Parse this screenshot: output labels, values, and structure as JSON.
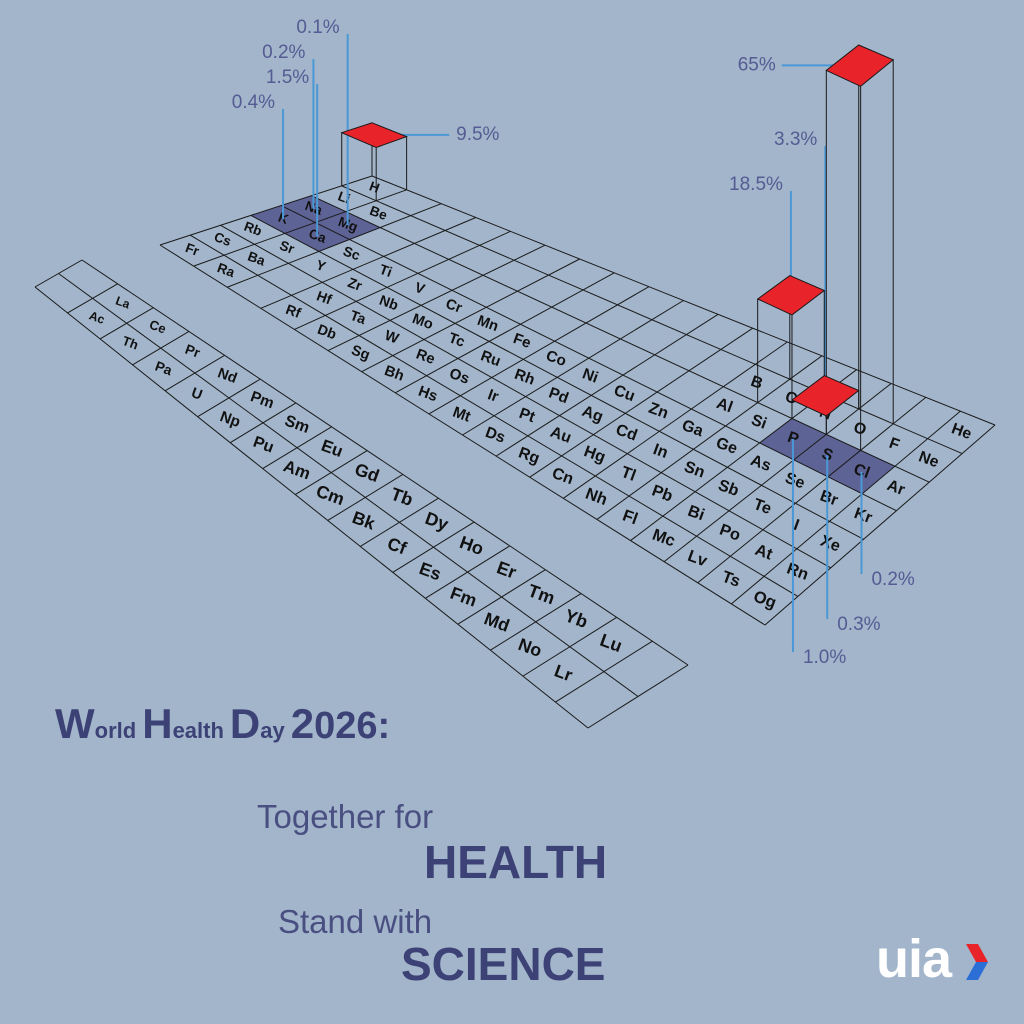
{
  "title": {
    "words": [
      "World",
      "Health",
      "Day",
      "2026:"
    ]
  },
  "slogans": [
    {
      "line1": "Together for",
      "line2": "HEALTH"
    },
    {
      "line1": "Stand with",
      "line2": "SCIENCE"
    }
  ],
  "logo": "uia",
  "periodic_table": {
    "main_rows": [
      [
        "H",
        null,
        null,
        null,
        null,
        null,
        null,
        null,
        null,
        null,
        null,
        null,
        null,
        null,
        null,
        null,
        null,
        "He"
      ],
      [
        "Li",
        "Be",
        null,
        null,
        null,
        null,
        null,
        null,
        null,
        null,
        null,
        null,
        "B",
        "C",
        "N",
        "O",
        "F",
        "Ne"
      ],
      [
        "Na",
        "Mg",
        null,
        null,
        null,
        null,
        null,
        null,
        null,
        null,
        null,
        null,
        "Al",
        "Si",
        "P",
        "S",
        "Cl",
        "Ar"
      ],
      [
        "K",
        "Ca",
        "Sc",
        "Ti",
        "V",
        "Cr",
        "Mn",
        "Fe",
        "Co",
        "Ni",
        "Cu",
        "Zn",
        "Ga",
        "Ge",
        "As",
        "Se",
        "Br",
        "Kr"
      ],
      [
        "Rb",
        "Sr",
        "Y",
        "Zr",
        "Nb",
        "Mo",
        "Tc",
        "Ru",
        "Rh",
        "Pd",
        "Ag",
        "Cd",
        "In",
        "Sn",
        "Sb",
        "Te",
        "I",
        "Xe"
      ],
      [
        "Cs",
        "Ba",
        null,
        "Hf",
        "Ta",
        "W",
        "Re",
        "Os",
        "Ir",
        "Pt",
        "Au",
        "Hg",
        "Tl",
        "Pb",
        "Bi",
        "Po",
        "At",
        "Rn"
      ],
      [
        "Fr",
        "Ra",
        null,
        "Rf",
        "Db",
        "Sg",
        "Bh",
        "Hs",
        "Mt",
        "Ds",
        "Rg",
        "Cn",
        "Nh",
        "Fl",
        "Mc",
        "Lv",
        "Ts",
        "Og"
      ]
    ],
    "lanthanides": [
      "La",
      "Ce",
      "Pr",
      "Nd",
      "Pm",
      "Sm",
      "Eu",
      "Gd",
      "Tb",
      "Dy",
      "Ho",
      "Er",
      "Tm",
      "Yb",
      "Lu"
    ],
    "actinides": [
      "Ac",
      "Th",
      "Pa",
      "U",
      "Np",
      "Pu",
      "Am",
      "Cm",
      "Bk",
      "Cf",
      "Es",
      "Fm",
      "Md",
      "No",
      "Lr"
    ]
  },
  "composition": [
    {
      "element": "O",
      "value": 65,
      "label": "65%",
      "style": "tower"
    },
    {
      "element": "C",
      "value": 18.5,
      "label": "18.5%",
      "style": "tower"
    },
    {
      "element": "H",
      "value": 9.5,
      "label": "9.5%",
      "style": "tower"
    },
    {
      "element": "N",
      "value": 3.3,
      "label": "3.3%",
      "style": "tower"
    },
    {
      "element": "Ca",
      "value": 1.5,
      "label": "1.5%",
      "style": "cell"
    },
    {
      "element": "P",
      "value": 1,
      "label": "1.0%",
      "style": "cell"
    },
    {
      "element": "K",
      "value": 0.4,
      "label": "0.4%",
      "style": "cell"
    },
    {
      "element": "S",
      "value": 0.3,
      "label": "0.3%",
      "style": "cell"
    },
    {
      "element": "Na",
      "value": 0.2,
      "label": "0.2%",
      "style": "cell"
    },
    {
      "element": "Cl",
      "value": 0.2,
      "label": "0.2%",
      "style": "cell"
    },
    {
      "element": "Mg",
      "value": 0.1,
      "label": "0.1%",
      "style": "cell"
    }
  ]
}
